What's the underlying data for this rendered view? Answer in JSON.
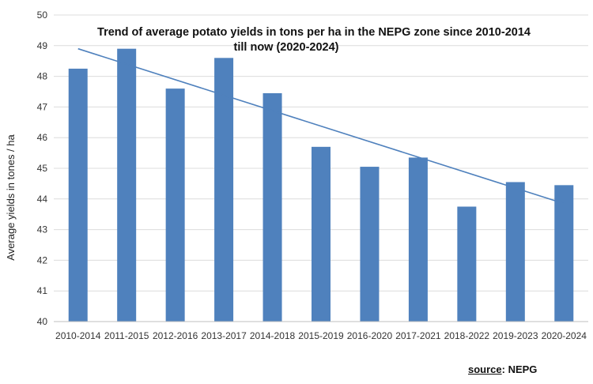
{
  "chart_data": {
    "type": "bar",
    "title_line1": "Trend of average  potato yields in tons per ha in the NEPG zone since 2010-2014",
    "title_line2": "till now (2020-2024)",
    "xlabel": "",
    "ylabel": "Average yields in tones / ha",
    "ylim": [
      40,
      50
    ],
    "yticks": [
      40,
      41,
      42,
      43,
      44,
      45,
      46,
      47,
      48,
      49,
      50
    ],
    "categories": [
      "2010-2014",
      "2011-2015",
      "2012-2016",
      "2013-2017",
      "2014-2018",
      "2015-2019",
      "2016-2020",
      "2017-2021",
      "2018-2022",
      "2019-2023",
      "2020-2024"
    ],
    "values": [
      48.25,
      48.9,
      47.6,
      48.6,
      47.45,
      45.7,
      45.05,
      45.35,
      43.75,
      44.55,
      44.45
    ],
    "trendline": {
      "start": 48.9,
      "end": 43.85
    },
    "grid": true,
    "bar_color": "#4f81bd",
    "trend_color": "#4f81bd"
  },
  "source": {
    "label": "source",
    "value": ": NEPG"
  }
}
